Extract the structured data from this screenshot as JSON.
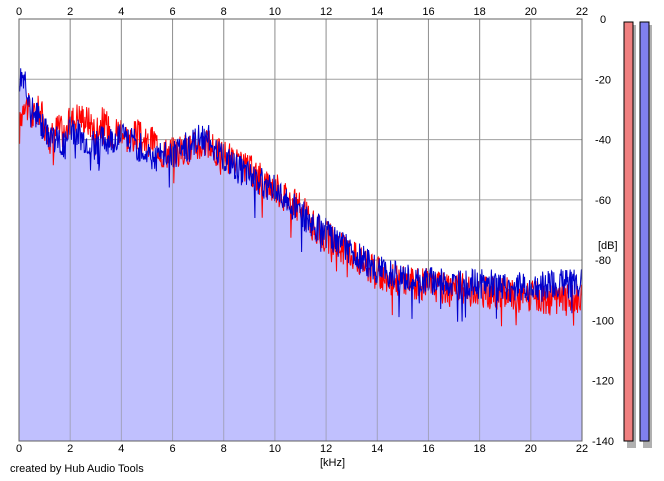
{
  "footer": {
    "credit": "created by Hub Audio Tools"
  },
  "chart_data": {
    "type": "line",
    "xlabel": "[kHz]",
    "ylabel": "[dB]",
    "xlim": [
      0,
      22
    ],
    "ylim": [
      -140,
      0
    ],
    "x_ticks": [
      "0",
      "2",
      "4",
      "6",
      "8",
      "10",
      "12",
      "14",
      "16",
      "18",
      "20",
      "22"
    ],
    "y_ticks": [
      "0",
      "-20",
      "-40",
      "-60",
      "-80",
      "-100",
      "-120",
      "-140"
    ],
    "grid": true,
    "fill_color": "#c0c0fe",
    "series": [
      {
        "color": "#ff0000",
        "x": [
          0,
          0.2,
          0.5,
          0.8,
          1.0,
          1.2,
          1.5,
          1.8,
          2.0,
          2.3,
          2.6,
          3.0,
          3.3,
          3.6,
          4.0,
          4.3,
          4.6,
          5.0,
          5.3,
          5.6,
          6.0,
          6.3,
          6.6,
          7.0,
          7.3,
          7.6,
          8.0,
          8.3,
          8.6,
          9.0,
          9.3,
          9.6,
          10.0,
          10.3,
          10.6,
          11.0,
          11.3,
          11.6,
          12.0,
          12.3,
          12.6,
          13.0,
          13.3,
          13.6,
          14.0,
          14.3,
          14.6,
          15.0,
          15.3,
          15.6,
          16.0,
          16.5,
          17.0,
          17.5,
          18.0,
          18.5,
          19.0,
          19.5,
          20.0,
          20.5,
          21.0,
          21.5,
          22.0
        ],
        "y": [
          -38,
          -26,
          -33,
          -30,
          -35,
          -40,
          -36,
          -38,
          -34,
          -32,
          -33,
          -36,
          -34,
          -38,
          -36,
          -40,
          -38,
          -42,
          -40,
          -44,
          -44,
          -44,
          -43,
          -42,
          -41,
          -44,
          -45,
          -47,
          -49,
          -50,
          -52,
          -54,
          -56,
          -58,
          -60,
          -63,
          -66,
          -70,
          -72,
          -74,
          -76,
          -78,
          -80,
          -82,
          -84,
          -86,
          -86,
          -87,
          -87,
          -88,
          -88,
          -89,
          -89,
          -90,
          -90,
          -91,
          -91,
          -92,
          -92,
          -93,
          -93,
          -93,
          -92
        ]
      },
      {
        "color": "#0000cc",
        "x": [
          0,
          0.2,
          0.5,
          0.8,
          1.0,
          1.2,
          1.5,
          1.8,
          2.0,
          2.3,
          2.6,
          3.0,
          3.3,
          3.6,
          4.0,
          4.3,
          4.6,
          5.0,
          5.3,
          5.6,
          6.0,
          6.3,
          6.6,
          7.0,
          7.3,
          7.6,
          8.0,
          8.3,
          8.6,
          9.0,
          9.3,
          9.6,
          10.0,
          10.3,
          10.6,
          11.0,
          11.3,
          11.6,
          12.0,
          12.3,
          12.6,
          13.0,
          13.3,
          13.6,
          14.0,
          14.3,
          14.6,
          15.0,
          15.3,
          15.6,
          16.0,
          16.5,
          17.0,
          17.5,
          18.0,
          18.5,
          19.0,
          19.5,
          20.0,
          20.5,
          21.0,
          21.5,
          22.0
        ],
        "y": [
          -20,
          -18,
          -30,
          -33,
          -37,
          -38,
          -40,
          -42,
          -36,
          -38,
          -40,
          -42,
          -40,
          -40,
          -38,
          -40,
          -42,
          -44,
          -46,
          -45,
          -45,
          -44,
          -42,
          -40,
          -38,
          -42,
          -46,
          -48,
          -50,
          -52,
          -53,
          -55,
          -56,
          -58,
          -61,
          -64,
          -67,
          -69,
          -71,
          -73,
          -75,
          -77,
          -79,
          -81,
          -83,
          -84,
          -85,
          -86,
          -86,
          -87,
          -87,
          -87,
          -88,
          -88,
          -88,
          -88,
          -89,
          -89,
          -89,
          -88,
          -88,
          -88,
          -87
        ]
      }
    ],
    "level_meters": [
      {
        "color": "#f08080",
        "level_db": -140
      },
      {
        "color": "#8080f0",
        "level_db": -140
      }
    ]
  }
}
